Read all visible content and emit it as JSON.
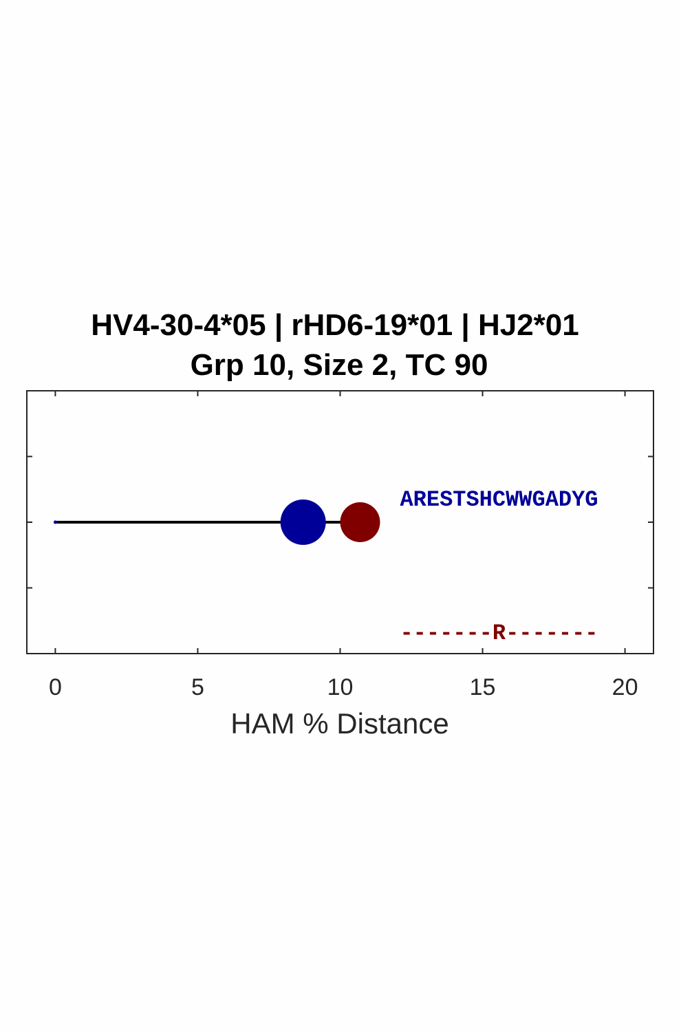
{
  "chart_data": {
    "type": "scatter",
    "title": [
      "HV4-30-4*05 | rHD6-19*01 | HJ2*01",
      "Grp 10, Size 2, TC 90"
    ],
    "xlabel": "HAM % Distance",
    "ylabel": "",
    "xlim": [
      -1,
      21
    ],
    "ylim": [
      0,
      4
    ],
    "xticks": [
      0,
      5,
      10,
      15,
      20
    ],
    "yticks": [
      0,
      1,
      2,
      3,
      4
    ],
    "grid": false,
    "lineage": {
      "x": [
        0,
        10.7
      ],
      "y": 2,
      "color": "#000000"
    },
    "points": [
      {
        "x": 0,
        "y": 2,
        "role": "root",
        "color": "#000099"
      },
      {
        "x": 8.7,
        "y": 2,
        "color": "#000099",
        "size": "large"
      },
      {
        "x": 10.7,
        "y": 2,
        "color": "#800000",
        "size": "medium"
      }
    ],
    "annotations": [
      {
        "text": "ARESTSHCWWGADYG",
        "x": 12.1,
        "y": 2.25,
        "color": "#000099"
      },
      {
        "text": "-------R-------",
        "x": 12.1,
        "y": 0.22,
        "color": "#800000"
      }
    ]
  }
}
